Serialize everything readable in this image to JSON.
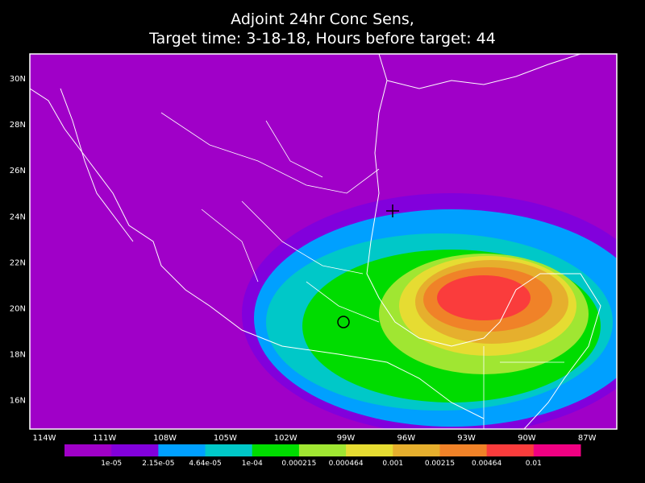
{
  "title": [
    "Adjoint 24hr Conc Sens,",
    "Target time: 3-18-18, Hours before target: 44"
  ],
  "map": {
    "lat_labels": [
      "30N",
      "28N",
      "26N",
      "24N",
      "22N",
      "20N",
      "18N",
      "16N"
    ],
    "lon_labels": [
      "114W",
      "111W",
      "108W",
      "105W",
      "102W",
      "99W",
      "96W",
      "93W",
      "90W",
      "87W"
    ]
  },
  "colorbar": {
    "labels": [
      "1e-05",
      "2.15e-05",
      "4.64e-05",
      "1e-04",
      "0.000215",
      "0.000464",
      "0.001",
      "0.00215",
      "0.00464",
      "0.01"
    ],
    "colors": [
      "#a000c8",
      "#8200dc",
      "#00a0ff",
      "#00c8c8",
      "#00dc00",
      "#a0e632",
      "#e6dc32",
      "#e6af2d",
      "#f08228",
      "#fa3c3c",
      "#f00082"
    ]
  }
}
